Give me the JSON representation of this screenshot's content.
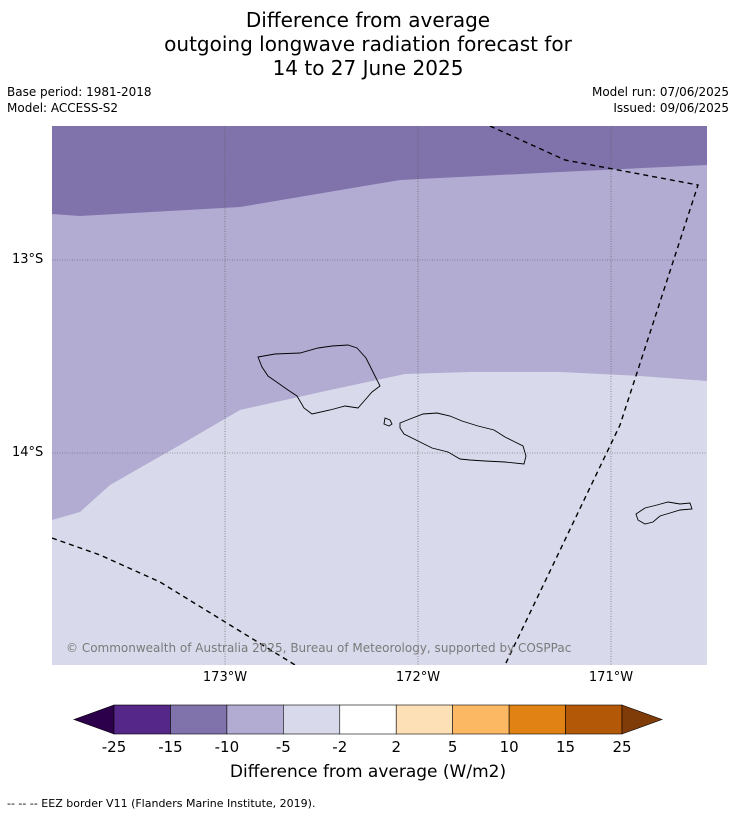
{
  "title": {
    "line1": "Difference from average",
    "line2": "outgoing longwave radiation forecast for",
    "line3": "14 to 27 June 2025"
  },
  "meta": {
    "base_period": "Base period: 1981-2018",
    "model": "Model: ACCESS-S2",
    "model_run": "Model run: 07/06/2025",
    "issued": "Issued: 09/06/2025"
  },
  "map": {
    "lat_labels": [
      "13°S",
      "14°S"
    ],
    "lon_labels": [
      "173°W",
      "172°W",
      "171°W"
    ],
    "credit": "© Commonwealth of Australia 2025, Bureau of Meteorology, supported by COSPPac",
    "islands": [
      "Savai'i",
      "Upolu",
      "Tutuila"
    ],
    "colors": {
      "band_-15_-10": "#8073ac",
      "band_-10_-5": "#b2abd2",
      "band_-5_-2": "#d8daeb"
    }
  },
  "colorbar": {
    "label": "Difference from average (W/m2)",
    "ticks": [
      "-25",
      "-15",
      "-10",
      "-5",
      "-2",
      "2",
      "5",
      "10",
      "15",
      "25"
    ],
    "colors": [
      "#2d004b",
      "#542788",
      "#8073ac",
      "#b2abd2",
      "#d8daeb",
      "#ffffff",
      "#fee0b6",
      "#fdb863",
      "#e08214",
      "#b35806",
      "#7f3b08"
    ]
  },
  "footnote": "-- -- -- EEZ border V11 (Flanders Marine Institute, 2019)."
}
